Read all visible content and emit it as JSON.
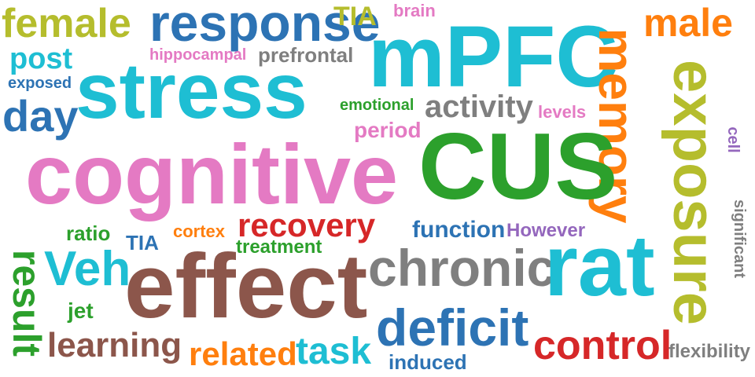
{
  "palette": {
    "olive": "#b5bd2d",
    "blue": "#2d73b4",
    "cyan": "#1ebed3",
    "pink": "#e47ac3",
    "green": "#2ca02c",
    "gray": "#7f7f7f",
    "orange": "#ff7f0e",
    "brown": "#8c564b",
    "red": "#d62728",
    "purple": "#9467bd"
  },
  "words": [
    {
      "key": "female",
      "text": "female",
      "color": "#b5bd2d"
    },
    {
      "key": "response",
      "text": "response",
      "color": "#2d73b4"
    },
    {
      "key": "tia-top",
      "text": "TIA",
      "color": "#b5bd2d"
    },
    {
      "key": "brain",
      "text": "brain",
      "color": "#e47ac3"
    },
    {
      "key": "mpfc",
      "text": "mPFC",
      "color": "#1ebed3"
    },
    {
      "key": "memory",
      "text": "memory",
      "color": "#ff7f0e"
    },
    {
      "key": "male",
      "text": "male",
      "color": "#ff7f0e"
    },
    {
      "key": "post",
      "text": "post",
      "color": "#1ebed3"
    },
    {
      "key": "hippocampal",
      "text": "hippocampal",
      "color": "#e47ac3"
    },
    {
      "key": "prefrontal",
      "text": "prefrontal",
      "color": "#7f7f7f"
    },
    {
      "key": "exposed",
      "text": "exposed",
      "color": "#2d73b4"
    },
    {
      "key": "stress",
      "text": "stress",
      "color": "#1ebed3"
    },
    {
      "key": "exposure",
      "text": "exposure",
      "color": "#b5bd2d"
    },
    {
      "key": "day",
      "text": "day",
      "color": "#2d73b4"
    },
    {
      "key": "emotional",
      "text": "emotional",
      "color": "#2ca02c"
    },
    {
      "key": "activity",
      "text": "activity",
      "color": "#7f7f7f"
    },
    {
      "key": "levels",
      "text": "levels",
      "color": "#e47ac3"
    },
    {
      "key": "period",
      "text": "period",
      "color": "#e47ac3"
    },
    {
      "key": "cell",
      "text": "cell",
      "color": "#9467bd"
    },
    {
      "key": "cognitive",
      "text": "cognitive",
      "color": "#e47ac3"
    },
    {
      "key": "cus",
      "text": "CUS",
      "color": "#2ca02c"
    },
    {
      "key": "significant",
      "text": "significant",
      "color": "#7f7f7f"
    },
    {
      "key": "result",
      "text": "result",
      "color": "#2ca02c"
    },
    {
      "key": "ratio",
      "text": "ratio",
      "color": "#2ca02c"
    },
    {
      "key": "cortex",
      "text": "cortex",
      "color": "#ff7f0e"
    },
    {
      "key": "recovery",
      "text": "recovery",
      "color": "#d62728"
    },
    {
      "key": "function",
      "text": "function",
      "color": "#2d73b4"
    },
    {
      "key": "however",
      "text": "However",
      "color": "#9467bd"
    },
    {
      "key": "tia",
      "text": "TIA",
      "color": "#2d73b4"
    },
    {
      "key": "treatment",
      "text": "treatment",
      "color": "#2ca02c"
    },
    {
      "key": "veh",
      "text": "Veh",
      "color": "#1ebed3"
    },
    {
      "key": "effect",
      "text": "effect",
      "color": "#8c564b"
    },
    {
      "key": "chronic",
      "text": "chronic",
      "color": "#7f7f7f"
    },
    {
      "key": "rat",
      "text": "rat",
      "color": "#1ebed3"
    },
    {
      "key": "jet",
      "text": "jet",
      "color": "#2ca02c"
    },
    {
      "key": "deficit",
      "text": "deficit",
      "color": "#2d73b4"
    },
    {
      "key": "learning",
      "text": "learning",
      "color": "#8c564b"
    },
    {
      "key": "related",
      "text": "related",
      "color": "#ff7f0e"
    },
    {
      "key": "task",
      "text": "task",
      "color": "#1ebed3"
    },
    {
      "key": "control",
      "text": "control",
      "color": "#d62728"
    },
    {
      "key": "flexibility",
      "text": "flexibility",
      "color": "#7f7f7f"
    },
    {
      "key": "induced",
      "text": "induced",
      "color": "#2d73b4"
    }
  ]
}
